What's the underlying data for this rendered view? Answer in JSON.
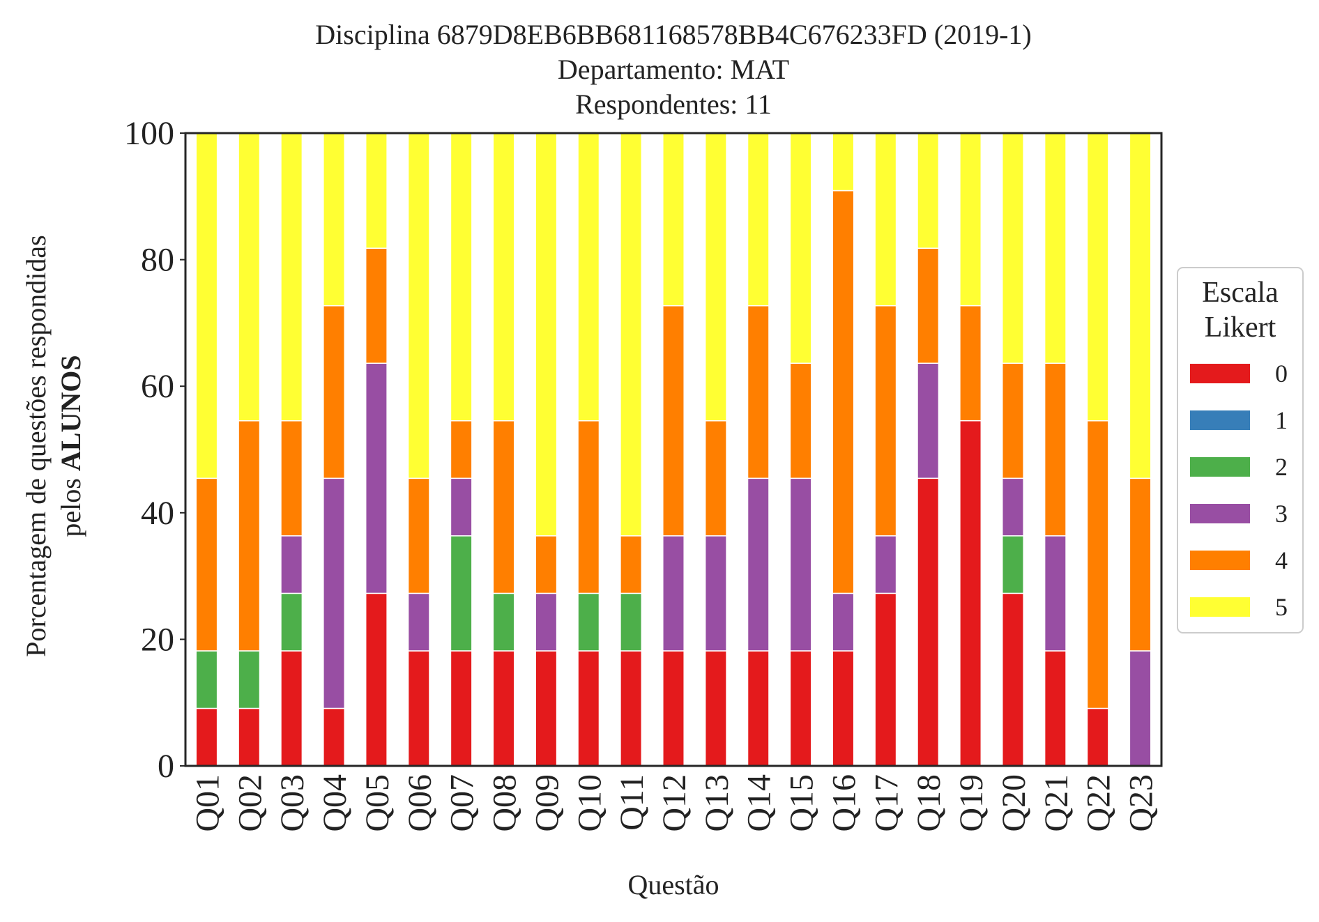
{
  "chart_data": {
    "type": "bar",
    "stacked": true,
    "title_lines": [
      "Disciplina 6879D8EB6BB681168578BB4C676233FD (2019-1)",
      "Departamento: MAT",
      "Respondentes: 11"
    ],
    "xlabel": "Questão",
    "ylabel_line1": "Porcentagem de questões respondidas",
    "ylabel_line2_prefix": "pelos ",
    "ylabel_line2_bold": "ALUNOS",
    "ylim": [
      0,
      100
    ],
    "yticks": [
      "0",
      "20",
      "40",
      "60",
      "80",
      "100"
    ],
    "grid": false,
    "legend": {
      "title_lines": [
        "Escala",
        "Likert"
      ],
      "placement": "right"
    },
    "categories": [
      "Q01",
      "Q02",
      "Q03",
      "Q04",
      "Q05",
      "Q06",
      "Q07",
      "Q08",
      "Q09",
      "Q10",
      "Q11",
      "Q12",
      "Q13",
      "Q14",
      "Q15",
      "Q16",
      "Q17",
      "Q18",
      "Q19",
      "Q20",
      "Q21",
      "Q22",
      "Q23"
    ],
    "series": [
      {
        "name": "0",
        "color": "#e41a1c",
        "values": [
          9.09,
          9.09,
          18.18,
          9.09,
          27.27,
          18.18,
          18.18,
          18.18,
          18.18,
          18.18,
          18.18,
          18.18,
          18.18,
          18.18,
          18.18,
          18.18,
          27.27,
          45.45,
          54.55,
          27.27,
          18.18,
          9.09,
          0
        ]
      },
      {
        "name": "1",
        "color": "#377eb8",
        "values": [
          0,
          0,
          0,
          0,
          0,
          0,
          0,
          0,
          0,
          0,
          0,
          0,
          0,
          0,
          0,
          0,
          0,
          0,
          0,
          0,
          0,
          0,
          0
        ]
      },
      {
        "name": "2",
        "color": "#4daf4a",
        "values": [
          9.09,
          9.09,
          9.09,
          0,
          0,
          0,
          18.18,
          9.09,
          0,
          9.09,
          9.09,
          0,
          0,
          0,
          0,
          0,
          0,
          0,
          0,
          9.09,
          0,
          0,
          0
        ]
      },
      {
        "name": "3",
        "color": "#984ea3",
        "values": [
          0,
          0,
          9.09,
          36.36,
          36.36,
          9.09,
          9.09,
          0,
          9.09,
          0,
          0,
          18.18,
          18.18,
          27.27,
          27.27,
          9.09,
          9.09,
          18.18,
          0,
          9.09,
          18.18,
          0,
          18.18
        ]
      },
      {
        "name": "4",
        "color": "#ff7f00",
        "values": [
          27.27,
          36.36,
          18.18,
          27.27,
          18.18,
          18.18,
          9.09,
          27.27,
          9.09,
          27.27,
          9.09,
          36.36,
          18.18,
          27.27,
          18.18,
          63.64,
          36.36,
          18.18,
          18.18,
          18.18,
          27.27,
          45.45,
          27.27
        ]
      },
      {
        "name": "5",
        "color": "#ffff33",
        "values": [
          54.55,
          45.45,
          45.45,
          27.27,
          18.18,
          54.55,
          45.45,
          45.45,
          63.64,
          45.45,
          63.64,
          27.27,
          45.45,
          27.27,
          36.36,
          9.09,
          27.27,
          18.18,
          27.27,
          36.36,
          36.36,
          45.45,
          54.55
        ]
      }
    ]
  }
}
